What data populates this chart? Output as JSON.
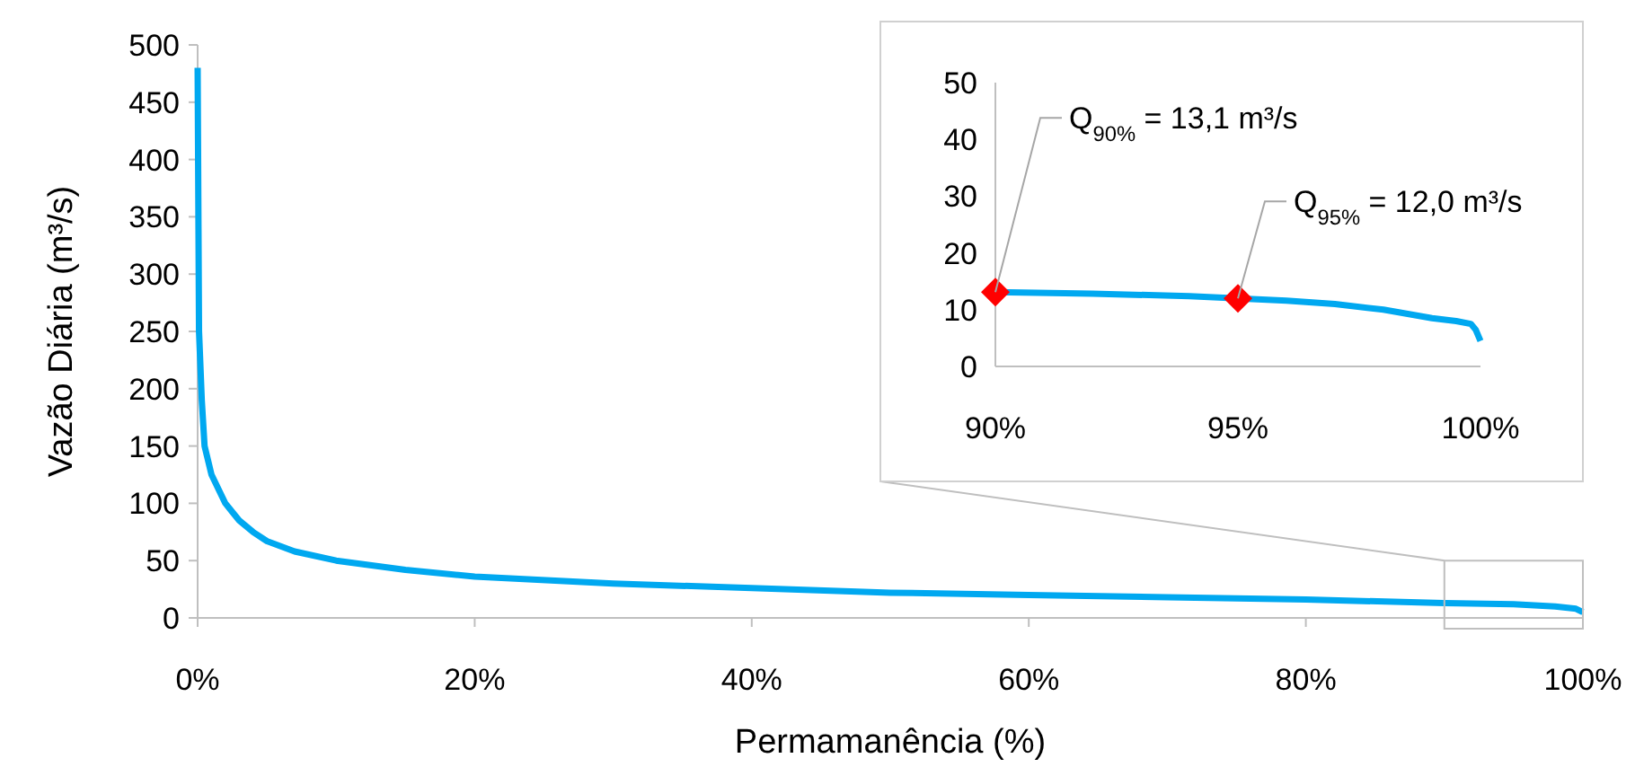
{
  "chart_data": [
    {
      "type": "line",
      "xlabel": "Permamanência (%)",
      "ylabel": "Vazão Diária (m³/s)",
      "xlim": [
        0,
        100
      ],
      "ylim": [
        0,
        500
      ],
      "xticks": [
        {
          "value": 0,
          "label": "0%"
        },
        {
          "value": 20,
          "label": "20%"
        },
        {
          "value": 40,
          "label": "40%"
        },
        {
          "value": 60,
          "label": "60%"
        },
        {
          "value": 80,
          "label": "80%"
        },
        {
          "value": 100,
          "label": "100%"
        }
      ],
      "yticks": [
        0,
        50,
        100,
        150,
        200,
        250,
        300,
        350,
        400,
        450,
        500
      ],
      "series": [
        {
          "color": "#00a8f0",
          "x": [
            0,
            0.1,
            0.3,
            0.5,
            1,
            2,
            3,
            4,
            5,
            7,
            10,
            15,
            20,
            30,
            40,
            50,
            60,
            70,
            80,
            90,
            95,
            98,
            99.5,
            100
          ],
          "values": [
            480,
            250,
            190,
            150,
            125,
            100,
            85,
            75,
            67,
            58,
            50,
            42,
            36,
            30,
            26,
            22,
            20,
            18,
            16,
            13,
            12,
            10,
            8,
            5
          ]
        }
      ]
    },
    {
      "type": "line",
      "xlim": [
        90,
        100
      ],
      "ylim": [
        0,
        50
      ],
      "xticks": [
        {
          "value": 90,
          "label": "90%"
        },
        {
          "value": 95,
          "label": "95%"
        },
        {
          "value": 100,
          "label": "100%"
        }
      ],
      "yticks": [
        0,
        10,
        20,
        30,
        40,
        50
      ],
      "annotations": [
        {
          "text": "Q$_{90%}$ = 13,1 m³/s",
          "x": 90,
          "y": 13.1
        },
        {
          "text": "Q$_{95%}$ = 12,0 m³/s",
          "x": 95,
          "y": 12.0
        }
      ],
      "series": [
        {
          "color": "#00a8f0",
          "x": [
            90,
            92,
            94,
            95,
            96,
            97,
            98,
            99,
            99.5,
            99.8,
            99.9,
            100
          ],
          "values": [
            13.1,
            12.8,
            12.4,
            12.0,
            11.6,
            11,
            10,
            8.5,
            8,
            7.5,
            6.5,
            4.5
          ]
        },
        {
          "type": "scatter",
          "color": "#ff0000",
          "marker": "diamond",
          "x": [
            90,
            95
          ],
          "values": [
            13.1,
            12.0
          ]
        }
      ]
    }
  ]
}
